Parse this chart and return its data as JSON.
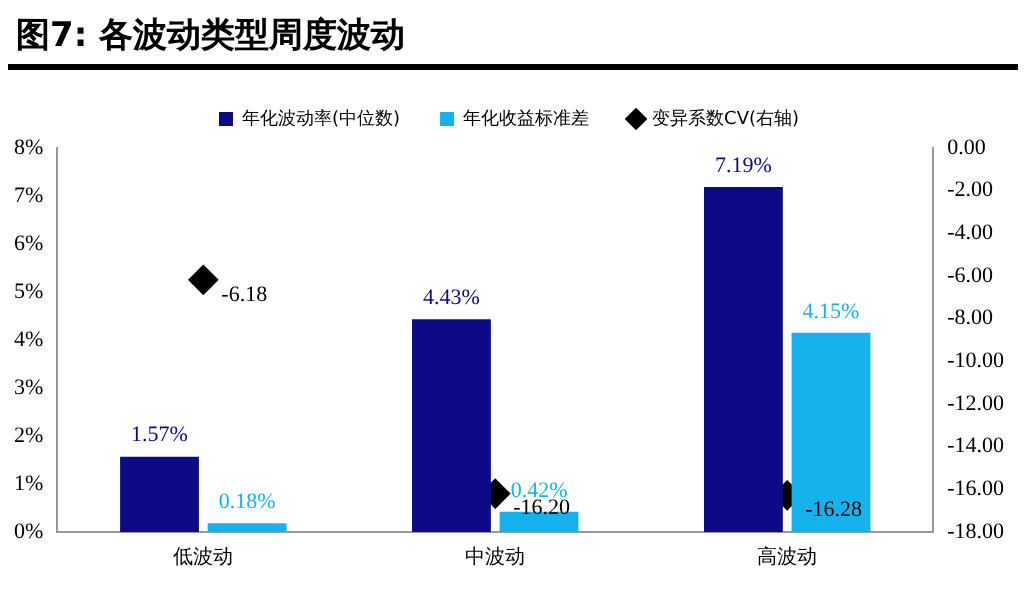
{
  "chart_data": {
    "type": "bar",
    "title": "图7:  各波动类型周度波动",
    "categories": [
      "低波动",
      "中波动",
      "高波动"
    ],
    "series": [
      {
        "name": "年化波动率(中位数)",
        "color": "#0c0a84",
        "values": [
          1.57,
          4.43,
          7.19
        ],
        "value_labels": [
          "1.57%",
          "4.43%",
          "7.19%"
        ]
      },
      {
        "name": "年化收益标准差",
        "color": "#16b2ee",
        "values": [
          0.18,
          0.42,
          4.15
        ],
        "value_labels": [
          "0.18%",
          "0.42%",
          "4.15%"
        ]
      },
      {
        "name": "变异系数CV(右轴)",
        "type": "scatter",
        "axis": "y2",
        "color": "#000000",
        "x": [
          "低波动",
          "中波动",
          "高波动"
        ],
        "values": [
          -6.18,
          -16.2,
          -16.28
        ],
        "value_labels": [
          "-6.18",
          "-16.20",
          "-16.28"
        ]
      }
    ],
    "ylim": [
      0,
      8
    ],
    "yticks": [
      {
        "value": 0,
        "label": "0%"
      },
      {
        "value": 1,
        "label": "1%"
      },
      {
        "value": 2,
        "label": "2%"
      },
      {
        "value": 3,
        "label": "3%"
      },
      {
        "value": 4,
        "label": "4%"
      },
      {
        "value": 5,
        "label": "5%"
      },
      {
        "value": 6,
        "label": "6%"
      },
      {
        "value": 7,
        "label": "7%"
      },
      {
        "value": 8,
        "label": "8%"
      }
    ],
    "y2lim": [
      -18,
      0
    ],
    "y2ticks": [
      {
        "value": 0,
        "label": "0.00"
      },
      {
        "value": -2,
        "label": "-2.00"
      },
      {
        "value": -4,
        "label": "-4.00"
      },
      {
        "value": -6,
        "label": "-6.00"
      },
      {
        "value": -8,
        "label": "-8.00"
      },
      {
        "value": -10,
        "label": "-10.00"
      },
      {
        "value": -12,
        "label": "-12.00"
      },
      {
        "value": -14,
        "label": "-14.00"
      },
      {
        "value": -16,
        "label": "-16.00"
      },
      {
        "value": -18,
        "label": "-18.00"
      }
    ],
    "grid": false,
    "legend": "top",
    "marker": "diamond"
  }
}
